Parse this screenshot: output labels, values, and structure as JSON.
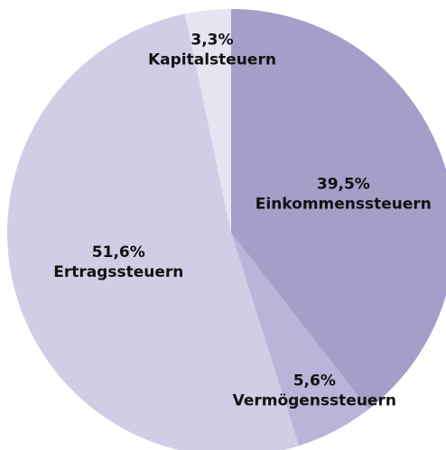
{
  "chart_data": {
    "type": "pie",
    "categories": [
      "Einkommenssteuern",
      "Vermögenssteuern",
      "Ertragssteuern",
      "Kapitalsteuern"
    ],
    "values": [
      39.5,
      5.6,
      51.6,
      3.3
    ],
    "value_labels": [
      "39,5%",
      "5,6%",
      "51,6%",
      "3,3%"
    ],
    "colors": [
      "#a59ec9",
      "#b9b4d8",
      "#d0cde5",
      "#e6e4f1"
    ]
  }
}
